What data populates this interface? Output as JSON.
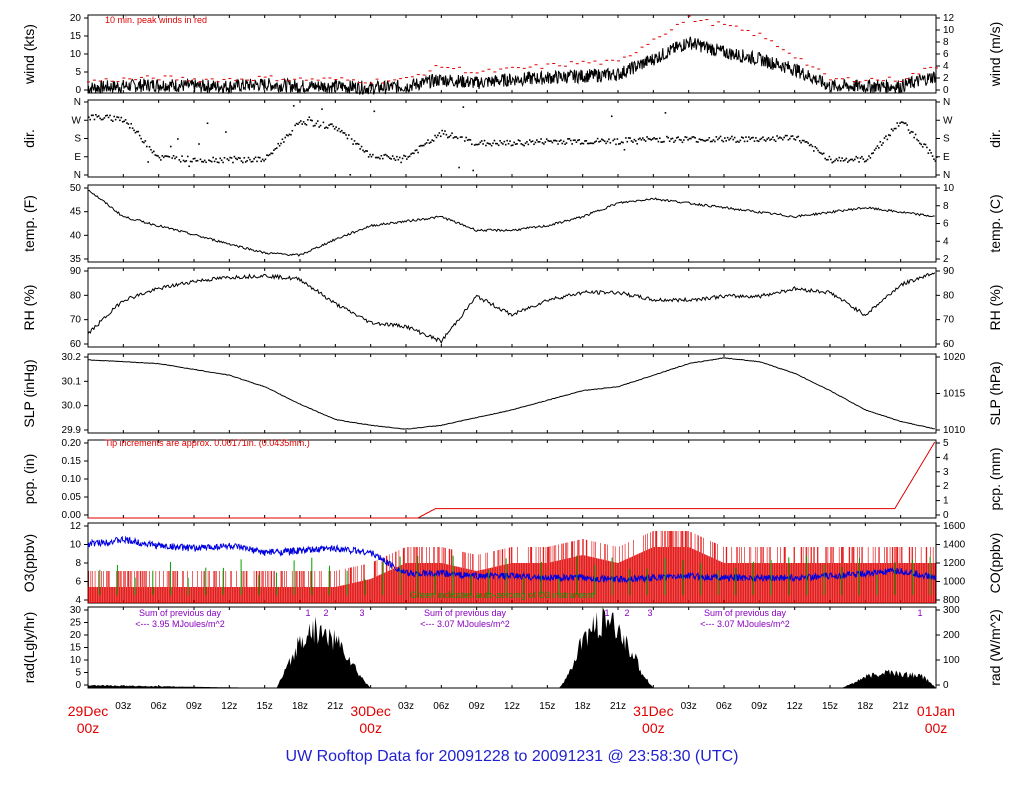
{
  "chart_data": [
    {
      "type": "line",
      "ylabel_left": "wind (kts)",
      "ylabel_right": "wind (m/s)",
      "ylim": [
        0,
        23
      ],
      "yticks_left": [
        "0",
        "5",
        "10",
        "15",
        "20"
      ],
      "yticks_right": [
        "0",
        "2",
        "4",
        "6",
        "8",
        "10",
        "12"
      ],
      "annotation": "10 min. peak winds in red",
      "series": [
        {
          "color": "#000000",
          "x": [
            0,
            3,
            6,
            9,
            12,
            15,
            18,
            21,
            24,
            27,
            30,
            33,
            36,
            39,
            42,
            45,
            48,
            51,
            54,
            57,
            60,
            63,
            66,
            69,
            72
          ],
          "values": [
            1.5,
            2,
            2.5,
            2,
            2,
            2.5,
            2,
            2,
            1.5,
            2,
            4,
            3,
            4,
            4.5,
            5,
            5.5,
            10,
            15,
            12,
            10,
            7,
            2,
            2,
            2,
            5
          ]
        },
        {
          "color": "#e00000",
          "x": [
            0,
            3,
            6,
            9,
            12,
            15,
            18,
            21,
            24,
            27,
            30,
            33,
            36,
            39,
            42,
            45,
            48,
            51,
            54,
            57,
            60,
            63,
            66,
            69,
            72
          ],
          "values": [
            3.5,
            4,
            4.5,
            4,
            4,
            4.5,
            4,
            4,
            3.5,
            4,
            8,
            6,
            7,
            8,
            9,
            9,
            16,
            22,
            20,
            17,
            11,
            4,
            4,
            4,
            8
          ]
        }
      ]
    },
    {
      "type": "scatter",
      "ylabel_left": "dir.",
      "ylabel_right": "dir.",
      "yticks": [
        "N",
        "E",
        "S",
        "W",
        "N"
      ],
      "x": [
        0,
        3,
        6,
        9,
        12,
        15,
        18,
        21,
        24,
        27,
        30,
        33,
        36,
        39,
        42,
        45,
        48,
        51,
        54,
        57,
        60,
        63,
        66,
        69,
        72
      ],
      "values": [
        290,
        280,
        90,
        80,
        80,
        80,
        270,
        240,
        90,
        90,
        210,
        160,
        160,
        170,
        170,
        170,
        180,
        180,
        180,
        180,
        190,
        80,
        80,
        270,
        80
      ]
    },
    {
      "type": "line",
      "ylabel_left": "temp. (F)",
      "ylabel_right": "temp. (C)",
      "ylim": [
        33,
        50
      ],
      "yticks_left": [
        "35",
        "40",
        "45",
        "50"
      ],
      "yticks_right": [
        "2",
        "4",
        "6",
        "8",
        "10"
      ],
      "x": [
        0,
        3,
        6,
        9,
        12,
        15,
        18,
        21,
        24,
        27,
        30,
        33,
        36,
        39,
        42,
        45,
        48,
        51,
        54,
        57,
        60,
        63,
        66,
        69,
        72
      ],
      "values": [
        49,
        43,
        41,
        39,
        37,
        35,
        34.5,
        38,
        41,
        42,
        43,
        40,
        40,
        41,
        43,
        46,
        47,
        46,
        45,
        44,
        43,
        44,
        45,
        44,
        43
      ]
    },
    {
      "type": "line",
      "ylabel_left": "RH (%)",
      "ylabel_right": "RH (%)",
      "ylim": [
        55,
        97
      ],
      "yticks": [
        "60",
        "70",
        "80",
        "90"
      ],
      "x": [
        0,
        3,
        6,
        9,
        12,
        15,
        18,
        21,
        24,
        27,
        30,
        33,
        36,
        39,
        42,
        45,
        48,
        51,
        54,
        57,
        60,
        63,
        66,
        69,
        72
      ],
      "values": [
        62,
        80,
        86,
        90,
        92,
        93,
        91,
        78,
        68,
        66,
        58,
        82,
        72,
        80,
        84,
        84,
        80,
        80,
        82,
        82,
        86,
        84,
        72,
        88,
        95
      ]
    },
    {
      "type": "line",
      "ylabel_left": "SLP (inHg)",
      "ylabel_right": "SLP (hPa)",
      "ylim": [
        29.82,
        30.23
      ],
      "yticks_left": [
        "29.9",
        "30.0",
        "30.1",
        "30.2"
      ],
      "yticks_right": [
        "1010",
        "1015",
        "1020"
      ],
      "x": [
        0,
        3,
        6,
        9,
        12,
        15,
        18,
        21,
        24,
        27,
        30,
        33,
        36,
        39,
        42,
        45,
        48,
        51,
        54,
        57,
        60,
        63,
        66,
        69,
        72
      ],
      "values": [
        30.2,
        30.19,
        30.18,
        30.15,
        30.12,
        30.06,
        29.97,
        29.89,
        29.86,
        29.84,
        29.86,
        29.9,
        29.94,
        29.99,
        30.04,
        30.06,
        30.12,
        30.18,
        30.21,
        30.19,
        30.13,
        30.04,
        29.94,
        29.88,
        29.84
      ]
    },
    {
      "type": "line",
      "ylabel_left": "pcp. (in)",
      "ylabel_right": "pcp. (mm)",
      "ylim": [
        0,
        0.2
      ],
      "yticks_left": [
        "0.00",
        "0.05",
        "0.10",
        "0.15",
        "0.20"
      ],
      "yticks_right": [
        "0",
        "1",
        "2",
        "3",
        "4",
        "5"
      ],
      "annotation": "Tip increments are approx. 0.00171in. (0.0435mm.)",
      "x": [
        0,
        28,
        29.5,
        68.5,
        72
      ],
      "values": [
        0,
        0,
        0.024,
        0.024,
        0.2
      ]
    },
    {
      "type": "line",
      "ylabel_left": "O3(ppbv)",
      "ylabel_right": "CO(ppbv)",
      "yticks_left": [
        "4",
        "6",
        "8",
        "10",
        "12"
      ],
      "yticks_right": [
        "800",
        "1000",
        "1200",
        "1400",
        "1600"
      ],
      "annotation": "Green indicates auto-zeroing of O3 instrument",
      "series": [
        {
          "name": "CO",
          "color": "#0000e0",
          "x": [
            0,
            3,
            6,
            9,
            12,
            15,
            18,
            21,
            24,
            27,
            30,
            33,
            36,
            39,
            42,
            45,
            48,
            51,
            54,
            57,
            60,
            63,
            66,
            69,
            72
          ],
          "values": [
            1400,
            1450,
            1380,
            1350,
            1380,
            1300,
            1320,
            1350,
            1300,
            1050,
            1050,
            1020,
            1020,
            1000,
            1000,
            980,
            1000,
            1020,
            1000,
            1000,
            1000,
            1020,
            1050,
            1080,
            1000
          ]
        },
        {
          "name": "O3",
          "color": "#e00000",
          "x": [
            0,
            3,
            6,
            9,
            12,
            15,
            18,
            21,
            24,
            27,
            30,
            33,
            36,
            39,
            42,
            45,
            48,
            51,
            54,
            57,
            60,
            63,
            66,
            69,
            72
          ],
          "values": [
            5,
            5,
            5,
            5,
            5,
            5,
            5,
            5,
            6,
            8,
            8,
            7,
            8,
            8,
            9,
            8,
            10,
            10,
            8,
            8,
            8,
            8,
            8,
            8,
            8
          ]
        }
      ]
    },
    {
      "type": "area",
      "ylabel_left": "rad(Lgly/hr)",
      "ylabel_right": "rad (W/m^2)",
      "ylim": [
        0,
        30
      ],
      "yticks_left": [
        "0",
        "5",
        "10",
        "15",
        "20",
        "25",
        "30"
      ],
      "yticks_right": [
        "0",
        "100",
        "200",
        "300"
      ],
      "annotations": [
        {
          "text": "Sum of previous day",
          "sub": "<--- 3.95 MJoules/m^2"
        },
        {
          "text": "Sum of previous day",
          "sub": "<--- 3.07 MJoules/m^2"
        },
        {
          "text": "Sum of previous day",
          "sub": "<--- 3.07 MJoules/m^2"
        }
      ],
      "markers": [
        "1",
        "2",
        "3",
        "1",
        "2",
        "3",
        "1"
      ],
      "x": [
        0,
        16,
        17,
        18,
        19,
        20,
        21,
        22,
        23,
        24,
        40,
        41,
        42,
        43,
        44,
        45,
        46,
        47,
        48,
        64,
        65,
        66,
        67,
        68,
        69,
        70,
        71,
        72
      ],
      "values": [
        1,
        0,
        8,
        17,
        22,
        20,
        18,
        12,
        5,
        0,
        0,
        6,
        18,
        22,
        25,
        21,
        15,
        6,
        0,
        0,
        2,
        4,
        5,
        6,
        5,
        5,
        4,
        0
      ]
    }
  ],
  "xaxis": {
    "hour_ticks": [
      "03z",
      "06z",
      "09z",
      "12z",
      "15z",
      "18z",
      "21z",
      "00z",
      "03z",
      "06z",
      "09z",
      "12z",
      "15z",
      "18z",
      "21z",
      "00z",
      "03z",
      "06z",
      "09z",
      "12z",
      "15z",
      "18z",
      "21z",
      "00z"
    ],
    "dates": [
      {
        "date": "29Dec",
        "hour": "00z"
      },
      {
        "date": "30Dec",
        "hour": "00z"
      },
      {
        "date": "31Dec",
        "hour": "00z"
      },
      {
        "date": "01Jan",
        "hour": "00z"
      }
    ]
  },
  "footer": "UW Rooftop Data for 20091228  to  20091231 @ 23:58:30  (UTC)"
}
